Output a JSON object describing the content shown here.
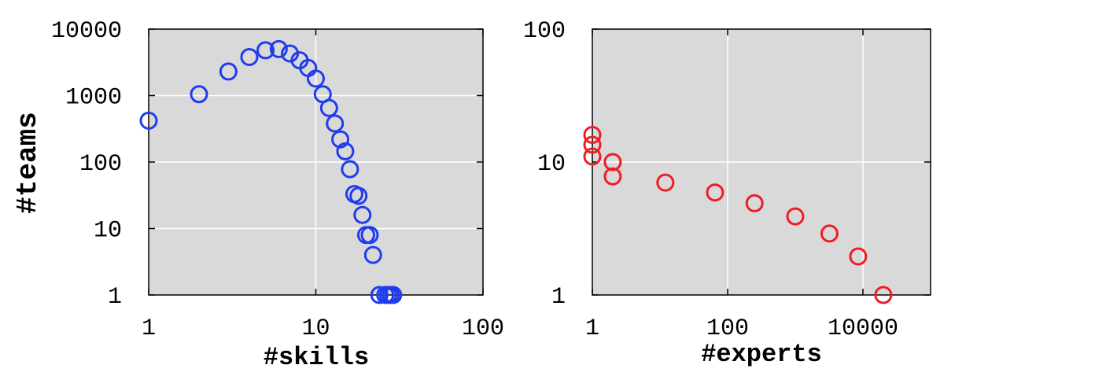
{
  "chart_data": [
    {
      "type": "scatter",
      "xlabel": "#skills",
      "ylabel": "#teams",
      "x_scale": "log",
      "y_scale": "log",
      "xlim": [
        1,
        100
      ],
      "ylim": [
        1,
        10000
      ],
      "x_ticks": [
        "1",
        "10",
        "100"
      ],
      "y_ticks": [
        "1",
        "10",
        "100",
        "1000",
        "10000"
      ],
      "grid": true,
      "marker_color": "#1f3cf0",
      "points": [
        {
          "x": 1,
          "y": 420
        },
        {
          "x": 2,
          "y": 1050
        },
        {
          "x": 3,
          "y": 2300
        },
        {
          "x": 4,
          "y": 3800
        },
        {
          "x": 5,
          "y": 4800
        },
        {
          "x": 6,
          "y": 5000
        },
        {
          "x": 7,
          "y": 4300
        },
        {
          "x": 8,
          "y": 3400
        },
        {
          "x": 9,
          "y": 2600
        },
        {
          "x": 10,
          "y": 1800
        },
        {
          "x": 11,
          "y": 1050
        },
        {
          "x": 12,
          "y": 650
        },
        {
          "x": 13,
          "y": 380
        },
        {
          "x": 14,
          "y": 220
        },
        {
          "x": 15,
          "y": 145
        },
        {
          "x": 16,
          "y": 78
        },
        {
          "x": 17,
          "y": 33
        },
        {
          "x": 18,
          "y": 31
        },
        {
          "x": 19,
          "y": 16
        },
        {
          "x": 20,
          "y": 8
        },
        {
          "x": 21,
          "y": 8
        },
        {
          "x": 22,
          "y": 4
        },
        {
          "x": 24,
          "y": 1
        },
        {
          "x": 26,
          "y": 1
        },
        {
          "x": 27,
          "y": 1
        },
        {
          "x": 28,
          "y": 1
        },
        {
          "x": 29,
          "y": 1
        }
      ]
    },
    {
      "type": "scatter",
      "xlabel": "#experts",
      "ylabel": "",
      "x_scale": "log",
      "y_scale": "log",
      "xlim": [
        1,
        100000
      ],
      "ylim": [
        1,
        100
      ],
      "x_ticks": [
        "1",
        "100",
        "10000"
      ],
      "y_ticks": [
        "1",
        "10",
        "100"
      ],
      "grid": true,
      "marker_color": "#ee1c25",
      "points": [
        {
          "x": 1,
          "y": 16
        },
        {
          "x": 1,
          "y": 13.5
        },
        {
          "x": 1,
          "y": 11
        },
        {
          "x": 2,
          "y": 10
        },
        {
          "x": 2,
          "y": 7.8
        },
        {
          "x": 12,
          "y": 7
        },
        {
          "x": 65,
          "y": 5.9
        },
        {
          "x": 250,
          "y": 4.9
        },
        {
          "x": 1000,
          "y": 3.9
        },
        {
          "x": 3200,
          "y": 2.9
        },
        {
          "x": 8500,
          "y": 1.95
        },
        {
          "x": 20000,
          "y": 1
        }
      ]
    }
  ]
}
